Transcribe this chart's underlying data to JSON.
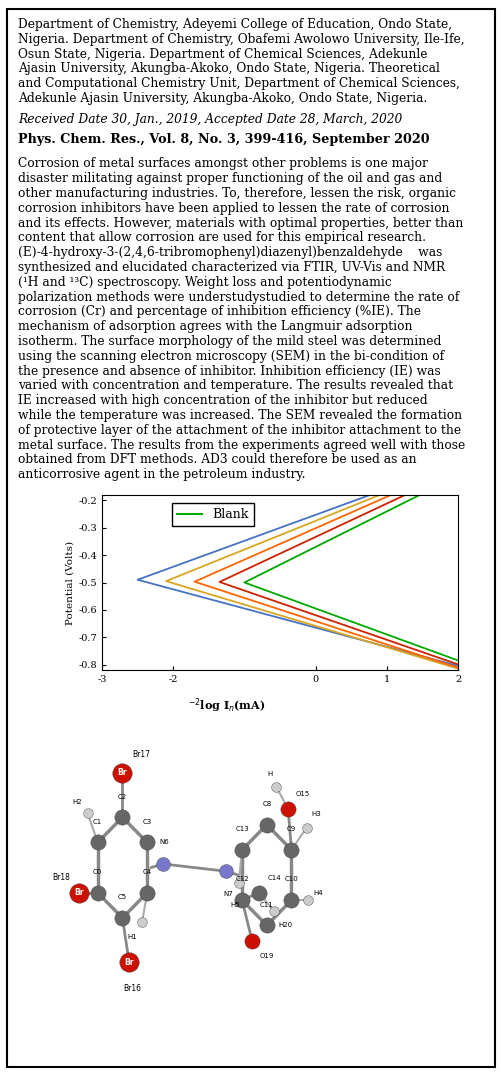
{
  "bg_color": "#ffffff",
  "border_color": "#000000",
  "font_family": "DejaVu Serif",
  "affiliation_lines": [
    "Department of Chemistry, Adeyemi College of Education, Ondo State,",
    "Nigeria. Department of Chemistry, Obafemi Awolowo University, Ile-Ife,",
    "Osun State, Nigeria. Department of Chemical Sciences, Adekunle",
    "Ajasin University, Akungba-Akoko, Ondo State, Nigeria. Theoretical",
    "and Computational Chemistry Unit, Department of Chemical Sciences,",
    "Adekunle Ajasin University, Akungba-Akoko, Ondo State, Nigeria."
  ],
  "received_text": "Received Date 30, Jan., 2019, Accepted Date 28, March, 2020",
  "journal_text": "Phys. Chem. Res., Vol. 8, No. 3, 399-416, September 2020",
  "abstract_lines": [
    "Corrosion of metal surfaces amongst other problems is one major",
    "disaster militating against proper functioning of the oil and gas and",
    "other manufacturing industries. To, therefore, lessen the risk, organic",
    "corrosion inhibitors have been applied to lessen the rate of corrosion",
    "and its effects. However, materials with optimal properties, better than",
    "content that allow corrosion are used for this empirical research.",
    "(E)-4-hydroxy-3-(2,4,6-tribromophenyl)diazenyl)benzaldehyde    was",
    "synthesized and elucidated characterized via FTIR, UV-Vis and NMR",
    "(¹H and ¹³C) spectroscopy. Weight loss and potentiodynamic",
    "polarization methods were understudystudied to determine the rate of",
    "corrosion (Cr) and percentage of inhibition efficiency (%IE). The",
    "mechanism of adsorption agrees with the Langmuir adsorption",
    "isotherm. The surface morphology of the mild steel was determined",
    "using the scanning electron microscopy (SEM) in the bi-condition of",
    "the presence and absence of inhibitor. Inhibition efficiency (IE) was",
    "varied with concentration and temperature. The results revealed that",
    "IE increased with high concentration of the inhibitor but reduced",
    "while the temperature was increased. The SEM revealed the formation",
    "of protective layer of the attachment of the inhibitor attachment to the",
    "metal surface. The results from the experiments agreed well with those",
    "obtained from DFT methods. AD3 could therefore be used as an",
    "anticorrosive agent in the petroleum industry."
  ],
  "graph_ylabel": "Potential (Volts)",
  "graph_xlabel": "log I",
  "graph_xlabel2": "(mA)",
  "graph_yticks": [
    -0.2,
    -0.3,
    -0.4,
    -0.5,
    -0.6,
    -0.7,
    -0.8
  ],
  "graph_xtick_vals": [
    -3,
    -2,
    0,
    1,
    2
  ],
  "graph_xtick_labels": [
    "-3",
    "-2",
    "0",
    "1",
    "2"
  ],
  "legend_label": "Blank",
  "line_colors": [
    "#00aa00",
    "#4472C4",
    "#DAA520",
    "#FF6600",
    "#CC2200"
  ],
  "fs_body": 8.8,
  "fs_journal": 9.2,
  "lh": 14.8
}
